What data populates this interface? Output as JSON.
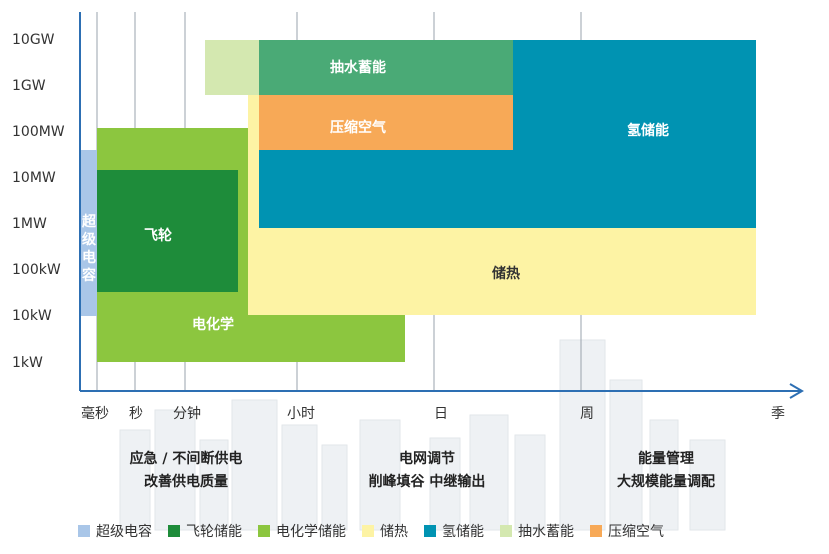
{
  "y_axis": {
    "ticks": [
      "10GW",
      "1GW",
      "100MW",
      "10MW",
      "1MW",
      "100kW",
      "10kW",
      "1kW"
    ]
  },
  "x_axis": {
    "ticks": [
      "毫秒",
      "秒",
      "分钟",
      "小时",
      "日",
      "周",
      "季"
    ]
  },
  "blocks": {
    "supercap": "超级电容",
    "flywheel": "飞轮",
    "electrochem": "电化学",
    "thermal": "储热",
    "hydrogen": "氢储能",
    "pumped": "抽水蓄能",
    "caes": "压缩空气"
  },
  "applications": [
    {
      "line1": "应急 / 不间断供电",
      "line2": "改善供电质量"
    },
    {
      "line1": "电网调节",
      "line2": "削峰填谷 中继输出"
    },
    {
      "line1": "能量管理",
      "line2": "大规模能量调配"
    }
  ],
  "legend": [
    {
      "label": "超级电容",
      "color": "#a9c6e8"
    },
    {
      "label": "飞轮储能",
      "color": "#1e8c3a"
    },
    {
      "label": "电化学储能",
      "color": "#8cc63f"
    },
    {
      "label": "储热",
      "color": "#fdf3a4"
    },
    {
      "label": "氢储能",
      "color": "#0093b2"
    },
    {
      "label": "抽水蓄能",
      "color": "#d4e8b0"
    },
    {
      "label": "压缩空气",
      "color": "#f7a957"
    }
  ],
  "colors": {
    "supercap": "#a9c6e8",
    "flywheel": "#1e8c3a",
    "electrochem": "#8cc63f",
    "thermal": "#fdf3a4",
    "hydrogen": "#0093b2",
    "pumped_light": "#d4e8b0",
    "pumped": "#4aaa76",
    "caes": "#f7a957",
    "axis": "#2d6fb3",
    "grid": "#9aa3ad"
  }
}
